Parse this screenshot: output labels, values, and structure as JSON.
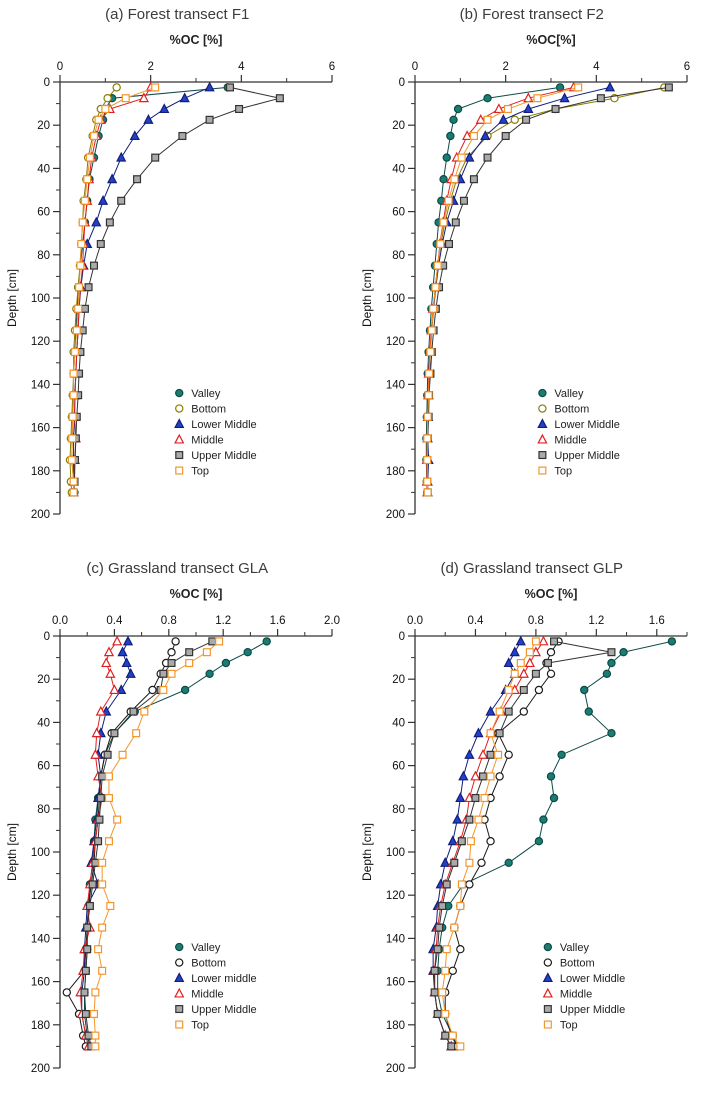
{
  "figure": {
    "kind": "soil organic carbon depth profiles",
    "background": "#ffffff"
  },
  "chart_data": [
    {
      "type": "line",
      "id": "a",
      "title": "(a) Forest transect F1",
      "xlabel": "%OC [%]",
      "ylabel": "Depth [cm]",
      "xlim": [
        0,
        6
      ],
      "xticks": [
        0,
        2,
        4,
        6
      ],
      "xtick_labels": [
        "0",
        "2",
        "4",
        "6"
      ],
      "xminor_step": 1,
      "ylim": [
        0,
        200
      ],
      "ytick_step": 20,
      "yminor_step": 10,
      "legend_pos": [
        0.42,
        0.72
      ],
      "legend_position": "inside lower right",
      "grid": false,
      "depths": [
        2.5,
        7.5,
        12.5,
        17.5,
        25,
        35,
        45,
        55,
        65,
        75,
        85,
        95,
        105,
        115,
        125,
        135,
        145,
        155,
        165,
        175,
        185,
        190
      ],
      "series": [
        {
          "name": "Valley",
          "marker": "circle",
          "open": false,
          "fill": "#1b7c74",
          "stroke": "#0d4b46",
          "values": [
            3.7,
            1.15,
            1.0,
            0.95,
            0.85,
            0.75,
            0.65,
            0.6,
            0.55,
            0.5,
            0.45,
            0.4,
            0.38,
            0.35,
            0.33,
            0.3,
            0.3,
            0.28,
            0.27,
            0.26,
            0.3,
            0.32
          ]
        },
        {
          "name": "Bottom",
          "marker": "circle",
          "open": true,
          "fill": "#ffffff",
          "stroke": "#8a7c00",
          "values": [
            1.25,
            1.05,
            0.9,
            0.8,
            0.72,
            0.62,
            0.58,
            0.52,
            0.5,
            0.47,
            0.44,
            0.4,
            0.36,
            0.33,
            0.3,
            0.3,
            0.28,
            0.26,
            0.24,
            0.22,
            0.24,
            0.26
          ]
        },
        {
          "name": "Lower Middle",
          "marker": "triangle",
          "open": false,
          "fill": "#2540c8",
          "stroke": "#101f7a",
          "values": [
            3.3,
            2.75,
            2.3,
            1.95,
            1.65,
            1.35,
            1.15,
            0.95,
            0.8,
            0.6,
            0.52,
            0.46,
            0.42,
            0.4,
            0.37,
            0.35,
            0.33,
            0.32,
            0.3,
            0.3,
            0.3,
            0.3
          ]
        },
        {
          "name": "Middle",
          "marker": "triangle",
          "open": true,
          "fill": "#ffffff",
          "stroke": "#e02020",
          "values": [
            2.0,
            1.85,
            1.1,
            0.9,
            0.8,
            0.7,
            0.64,
            0.6,
            0.55,
            0.52,
            0.5,
            0.45,
            0.42,
            0.4,
            0.37,
            0.35,
            0.33,
            0.32,
            0.35,
            0.33,
            0.3,
            0.3
          ]
        },
        {
          "name": "Upper Middle",
          "marker": "square",
          "open": false,
          "fill": "#aaaaaa",
          "stroke": "#333333",
          "values": [
            3.75,
            4.85,
            3.95,
            3.3,
            2.7,
            2.1,
            1.7,
            1.35,
            1.1,
            0.9,
            0.75,
            0.63,
            0.55,
            0.5,
            0.45,
            0.42,
            0.4,
            0.37,
            0.35,
            0.33,
            0.32,
            0.3
          ]
        },
        {
          "name": "Top",
          "marker": "square",
          "open": true,
          "fill": "#ffffff",
          "stroke": "#f2962c",
          "values": [
            2.1,
            1.45,
            1.0,
            0.85,
            0.75,
            0.66,
            0.6,
            0.55,
            0.5,
            0.47,
            0.45,
            0.42,
            0.4,
            0.37,
            0.33,
            0.3,
            0.3,
            0.28,
            0.27,
            0.26,
            0.3,
            0.3
          ]
        }
      ]
    },
    {
      "type": "line",
      "id": "b",
      "title": "(b) Forest transect F2",
      "xlabel": "%OC[%]",
      "ylabel": "Depth [cm]",
      "xlim": [
        0,
        6
      ],
      "xticks": [
        0,
        2,
        4,
        6
      ],
      "xtick_labels": [
        "0",
        "2",
        "4",
        "6"
      ],
      "xminor_step": 1,
      "ylim": [
        0,
        200
      ],
      "ytick_step": 20,
      "yminor_step": 10,
      "legend_pos": [
        0.45,
        0.72
      ],
      "legend_position": "inside lower right",
      "grid": false,
      "depths": [
        2.5,
        7.5,
        12.5,
        17.5,
        25,
        35,
        45,
        55,
        65,
        75,
        85,
        95,
        105,
        115,
        125,
        135,
        145,
        155,
        165,
        175,
        185,
        190
      ],
      "series": [
        {
          "name": "Valley",
          "marker": "circle",
          "open": false,
          "fill": "#1b7c74",
          "stroke": "#0d4b46",
          "values": [
            3.2,
            1.6,
            0.95,
            0.85,
            0.78,
            0.7,
            0.63,
            0.58,
            0.52,
            0.48,
            0.44,
            0.4,
            0.36,
            0.33,
            0.3,
            0.28,
            0.27,
            0.26,
            0.25,
            0.25,
            0.26,
            0.27
          ]
        },
        {
          "name": "Bottom",
          "marker": "circle",
          "open": true,
          "fill": "#ffffff",
          "stroke": "#8a7c00",
          "values": [
            5.5,
            4.4,
            3.1,
            2.2,
            1.6,
            1.15,
            0.92,
            0.78,
            0.66,
            0.57,
            0.5,
            0.45,
            0.4,
            0.36,
            0.33,
            0.31,
            0.3,
            0.28,
            0.27,
            0.26,
            0.26,
            0.27
          ]
        },
        {
          "name": "Lower Middle",
          "marker": "triangle",
          "open": false,
          "fill": "#2540c8",
          "stroke": "#101f7a",
          "values": [
            4.3,
            3.3,
            2.5,
            1.95,
            1.55,
            1.2,
            1.0,
            0.85,
            0.7,
            0.6,
            0.52,
            0.46,
            0.41,
            0.37,
            0.34,
            0.32,
            0.3,
            0.29,
            0.28,
            0.3,
            0.28,
            0.28
          ]
        },
        {
          "name": "Middle",
          "marker": "triangle",
          "open": true,
          "fill": "#ffffff",
          "stroke": "#e02020",
          "values": [
            3.5,
            2.5,
            1.85,
            1.45,
            1.15,
            0.92,
            0.8,
            0.7,
            0.62,
            0.55,
            0.5,
            0.45,
            0.4,
            0.36,
            0.33,
            0.3,
            0.29,
            0.28,
            0.27,
            0.26,
            0.26,
            0.27
          ]
        },
        {
          "name": "Upper Middle",
          "marker": "square",
          "open": false,
          "fill": "#aaaaaa",
          "stroke": "#333333",
          "values": [
            5.6,
            4.1,
            3.1,
            2.45,
            2.0,
            1.6,
            1.3,
            1.08,
            0.9,
            0.75,
            0.62,
            0.53,
            0.46,
            0.41,
            0.37,
            0.34,
            0.31,
            0.3,
            0.28,
            0.27,
            0.27,
            0.28
          ]
        },
        {
          "name": "Top",
          "marker": "square",
          "open": true,
          "fill": "#ffffff",
          "stroke": "#f2962c",
          "values": [
            3.6,
            2.7,
            2.05,
            1.6,
            1.3,
            1.03,
            0.87,
            0.74,
            0.63,
            0.56,
            0.5,
            0.45,
            0.4,
            0.37,
            0.34,
            0.31,
            0.3,
            0.28,
            0.27,
            0.27,
            0.27,
            0.28
          ]
        }
      ]
    },
    {
      "type": "line",
      "id": "c",
      "title": "(c) Grassland transect GLA",
      "xlabel": "%OC [%]",
      "ylabel": "Depth [cm]",
      "xlim": [
        0,
        2.0
      ],
      "xticks": [
        0,
        0.4,
        0.8,
        1.2,
        1.6,
        2.0
      ],
      "xtick_labels": [
        "0.0",
        "0.4",
        "0.8",
        "1.2",
        "1.6",
        "2.0"
      ],
      "xminor_step": 0.2,
      "ylim": [
        0,
        200
      ],
      "ytick_step": 20,
      "yminor_step": 10,
      "legend_pos": [
        0.42,
        0.72
      ],
      "legend_position": "inside lower right",
      "grid": false,
      "depths": [
        2.5,
        7.5,
        12.5,
        17.5,
        25,
        35,
        45,
        55,
        65,
        75,
        85,
        95,
        105,
        115,
        125,
        135,
        145,
        155,
        165,
        175,
        185,
        190
      ],
      "series": [
        {
          "name": "Valley",
          "marker": "circle",
          "open": false,
          "fill": "#1b7c74",
          "stroke": "#0d4b46",
          "values": [
            1.52,
            1.38,
            1.22,
            1.1,
            0.92,
            0.55,
            0.4,
            0.33,
            0.3,
            0.28,
            0.26,
            0.25,
            0.24,
            0.22,
            0.21,
            0.2,
            0.2,
            0.19,
            0.18,
            0.18,
            0.2,
            0.22
          ]
        },
        {
          "name": "Bottom",
          "marker": "circle",
          "open": true,
          "fill": "#ffffff",
          "stroke": "#1a1a1a",
          "values": [
            0.85,
            0.82,
            0.78,
            0.74,
            0.68,
            0.52,
            0.38,
            0.33,
            0.3,
            0.29,
            0.28,
            0.26,
            0.25,
            0.23,
            0.21,
            0.2,
            0.19,
            0.18,
            0.05,
            0.14,
            0.17,
            0.19
          ]
        },
        {
          "name": "Lower middle",
          "marker": "triangle",
          "open": false,
          "fill": "#2540c8",
          "stroke": "#101f7a",
          "values": [
            0.5,
            0.46,
            0.49,
            0.52,
            0.45,
            0.34,
            0.3,
            0.28,
            0.3,
            0.28,
            0.27,
            0.25,
            0.23,
            0.28,
            0.2,
            0.19,
            0.18,
            0.18,
            0.16,
            0.16,
            0.19,
            0.21
          ]
        },
        {
          "name": "Middle",
          "marker": "triangle",
          "open": true,
          "fill": "#ffffff",
          "stroke": "#e02020",
          "values": [
            0.42,
            0.36,
            0.34,
            0.37,
            0.4,
            0.3,
            0.27,
            0.26,
            0.28,
            0.31,
            0.28,
            0.26,
            0.24,
            0.22,
            0.2,
            0.22,
            0.18,
            0.17,
            0.15,
            0.16,
            0.19,
            0.21
          ]
        },
        {
          "name": "Upper Middle",
          "marker": "square",
          "open": false,
          "fill": "#aaaaaa",
          "stroke": "#333333",
          "values": [
            1.12,
            0.95,
            0.82,
            0.76,
            0.74,
            0.54,
            0.4,
            0.35,
            0.31,
            0.3,
            0.29,
            0.28,
            0.26,
            0.24,
            0.22,
            0.2,
            0.2,
            0.19,
            0.18,
            0.19,
            0.21,
            0.23
          ]
        },
        {
          "name": "Top",
          "marker": "square",
          "open": true,
          "fill": "#ffffff",
          "stroke": "#f2962c",
          "values": [
            1.17,
            1.08,
            0.95,
            0.82,
            0.76,
            0.62,
            0.56,
            0.46,
            0.36,
            0.36,
            0.42,
            0.36,
            0.31,
            0.31,
            0.37,
            0.31,
            0.28,
            0.31,
            0.26,
            0.25,
            0.26,
            0.26
          ]
        }
      ]
    },
    {
      "type": "line",
      "id": "d",
      "title": "(d) Grassland transect GLP",
      "xlabel": "%OC [%]",
      "ylabel": "Depth [cm]",
      "xlim": [
        0,
        1.8
      ],
      "xticks": [
        0,
        0.4,
        0.8,
        1.2,
        1.6
      ],
      "xtick_labels": [
        "0.0",
        "0.4",
        "0.8",
        "1.2",
        "1.6"
      ],
      "xminor_step": 0.2,
      "ylim": [
        0,
        200
      ],
      "ytick_step": 20,
      "yminor_step": 10,
      "legend_pos": [
        0.47,
        0.72
      ],
      "legend_position": "inside lower right",
      "grid": false,
      "depths": [
        2.5,
        7.5,
        12.5,
        17.5,
        25,
        35,
        45,
        55,
        65,
        75,
        85,
        95,
        105,
        115,
        125,
        135,
        145,
        155,
        165,
        175,
        185,
        190
      ],
      "series": [
        {
          "name": "Valley",
          "marker": "circle",
          "open": false,
          "fill": "#1b7c74",
          "stroke": "#0d4b46",
          "values": [
            1.7,
            1.38,
            1.3,
            1.27,
            1.12,
            1.15,
            1.3,
            0.97,
            0.9,
            0.92,
            0.85,
            0.82,
            0.62,
            0.32,
            0.22,
            0.18,
            0.16,
            0.15,
            0.15,
            0.18,
            0.25,
            0.28
          ]
        },
        {
          "name": "Bottom",
          "marker": "circle",
          "open": true,
          "fill": "#ffffff",
          "stroke": "#1a1a1a",
          "values": [
            0.95,
            0.9,
            0.87,
            0.9,
            0.82,
            0.72,
            0.55,
            0.62,
            0.56,
            0.5,
            0.46,
            0.5,
            0.44,
            0.36,
            0.3,
            0.26,
            0.3,
            0.25,
            0.2,
            0.2,
            0.24,
            0.28
          ]
        },
        {
          "name": "Lower Middle",
          "marker": "triangle",
          "open": false,
          "fill": "#2540c8",
          "stroke": "#101f7a",
          "values": [
            0.7,
            0.66,
            0.62,
            0.66,
            0.6,
            0.5,
            0.42,
            0.36,
            0.32,
            0.3,
            0.28,
            0.25,
            0.2,
            0.17,
            0.15,
            0.14,
            0.12,
            0.12,
            0.13,
            0.15,
            0.2,
            0.24
          ]
        },
        {
          "name": "Middle",
          "marker": "triangle",
          "open": true,
          "fill": "#ffffff",
          "stroke": "#e02020",
          "values": [
            0.85,
            0.8,
            0.76,
            0.72,
            0.66,
            0.57,
            0.5,
            0.45,
            0.4,
            0.36,
            0.34,
            0.3,
            0.25,
            0.2,
            0.17,
            0.15,
            0.14,
            0.13,
            0.13,
            0.15,
            0.2,
            0.24
          ]
        },
        {
          "name": "Upper Middle",
          "marker": "square",
          "open": false,
          "fill": "#aaaaaa",
          "stroke": "#333333",
          "values": [
            0.92,
            1.3,
            0.88,
            0.8,
            0.72,
            0.62,
            0.56,
            0.5,
            0.45,
            0.4,
            0.36,
            0.31,
            0.26,
            0.21,
            0.18,
            0.16,
            0.15,
            0.13,
            0.13,
            0.15,
            0.2,
            0.24
          ]
        },
        {
          "name": "Top",
          "marker": "square",
          "open": true,
          "fill": "#ffffff",
          "stroke": "#f2962c",
          "values": [
            0.8,
            0.76,
            0.7,
            0.66,
            0.62,
            0.56,
            0.5,
            0.55,
            0.5,
            0.46,
            0.42,
            0.37,
            0.36,
            0.31,
            0.3,
            0.26,
            0.21,
            0.2,
            0.18,
            0.2,
            0.25,
            0.3
          ]
        }
      ]
    }
  ]
}
